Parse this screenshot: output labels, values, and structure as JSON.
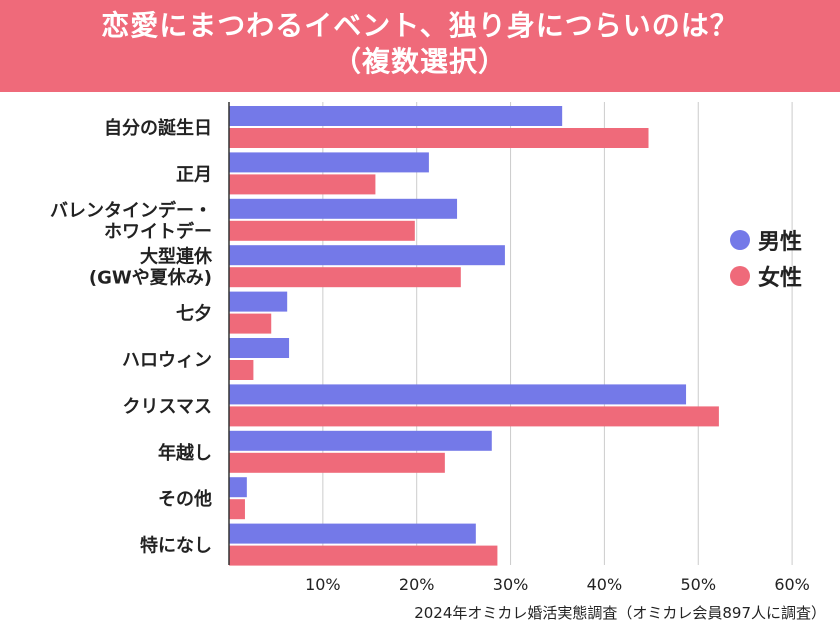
{
  "title": {
    "line1": "恋愛にまつわるイベント、独り身につらいのは？",
    "line2": "（複数選択）"
  },
  "source": "2024年オミカレ婚活実態調査（オミカレ会員897人に調査）",
  "colors": {
    "header": "#ef6a7a",
    "male": "#7479e8",
    "female": "#ef6a7a",
    "grid": "#cccccc",
    "axis": "#333333"
  },
  "chart_data": {
    "type": "bar",
    "orientation": "horizontal",
    "categories": [
      "自分の誕生日",
      "正月",
      "バレンタインデー・\nホワイトデー",
      "大型連休\n(GWや夏休み)",
      "七夕",
      "ハロウィン",
      "クリスマス",
      "年越し",
      "その他",
      "特になし"
    ],
    "series": [
      {
        "name": "男性",
        "values": [
          35.5,
          21.3,
          24.3,
          29.4,
          6.2,
          6.4,
          48.7,
          28.0,
          1.9,
          26.3
        ]
      },
      {
        "name": "女性",
        "values": [
          44.7,
          15.6,
          19.8,
          24.7,
          4.5,
          2.6,
          52.2,
          23.0,
          1.7,
          28.6
        ]
      }
    ],
    "xticks": [
      "10%",
      "20%",
      "30%",
      "40%",
      "50%",
      "60%"
    ],
    "xtick_values": [
      10,
      20,
      30,
      40,
      50,
      60
    ],
    "xlim": [
      0,
      60
    ],
    "xlabel": "",
    "ylabel": "",
    "legend_position": "right",
    "grid": true
  }
}
